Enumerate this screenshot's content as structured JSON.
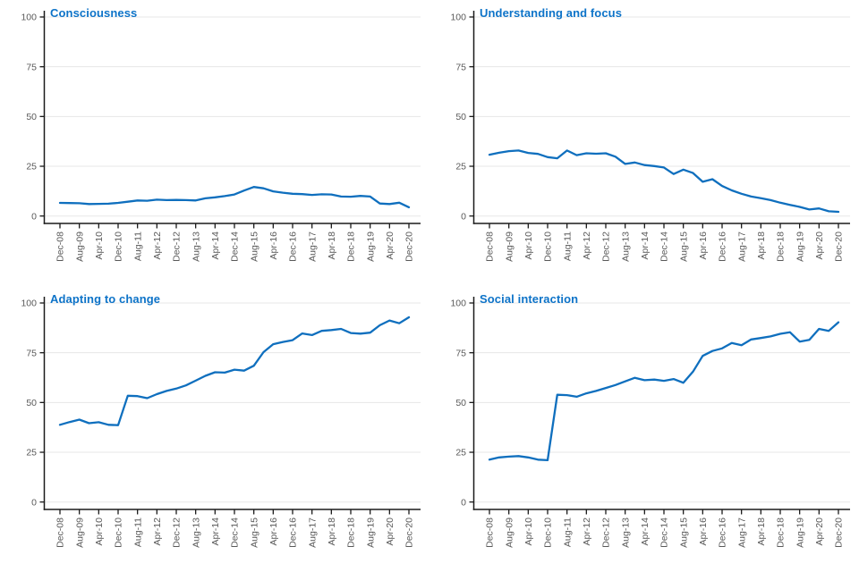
{
  "chart_data": {
    "type": "line",
    "title": "",
    "xlabel": "",
    "ylabel": "",
    "ylim": [
      0,
      100
    ],
    "y_ticks": [
      0,
      25,
      50,
      75,
      100
    ],
    "grid": "horizontal",
    "legend": "none",
    "line_color": "#0f6fbe",
    "title_color": "#0d73c8",
    "axis_color": "#1a1a1a",
    "gridline_color": "#e7e7e7",
    "tick_label_color": "#595959",
    "x": [
      "Dec-08",
      "Apr-09",
      "Aug-09",
      "Dec-09",
      "Apr-10",
      "Aug-10",
      "Dec-10",
      "Apr-11",
      "Aug-11",
      "Dec-11",
      "Apr-12",
      "Aug-12",
      "Dec-12",
      "Apr-13",
      "Aug-13",
      "Dec-13",
      "Apr-14",
      "Aug-14",
      "Dec-14",
      "Apr-15",
      "Aug-15",
      "Dec-15",
      "Apr-16",
      "Aug-16",
      "Dec-16",
      "Apr-17",
      "Aug-17",
      "Dec-17",
      "Apr-18",
      "Aug-18",
      "Dec-18",
      "Apr-19",
      "Aug-19",
      "Dec-19",
      "Apr-20",
      "Aug-20",
      "Dec-20"
    ],
    "x_tick_labels": [
      "Dec-08",
      "Aug-09",
      "Apr-10",
      "Dec-10",
      "Aug-11",
      "Apr-12",
      "Dec-12",
      "Aug-13",
      "Apr-14",
      "Dec-14",
      "Aug-15",
      "Apr-16",
      "Dec-16",
      "Aug-17",
      "Apr-18",
      "Dec-18",
      "Aug-19",
      "Apr-20",
      "Dec-20"
    ],
    "charts": [
      {
        "title": "Consciousness",
        "values": [
          6.6,
          6.5,
          6.4,
          6.0,
          6.1,
          6.2,
          6.6,
          7.2,
          7.8,
          7.7,
          8.2,
          8.0,
          8.1,
          8.0,
          7.8,
          8.9,
          9.4,
          10.0,
          10.8,
          12.8,
          14.6,
          13.9,
          12.4,
          11.7,
          11.2,
          11.0,
          10.6,
          10.9,
          10.8,
          9.8,
          9.7,
          10.1,
          9.8,
          6.3,
          6.0,
          6.7,
          4.4
        ]
      },
      {
        "title": "Understanding and focus",
        "values": [
          30.8,
          31.8,
          32.6,
          32.9,
          31.7,
          31.2,
          29.6,
          29.0,
          32.9,
          30.6,
          31.5,
          31.3,
          31.5,
          29.8,
          26.2,
          26.9,
          25.6,
          25.1,
          24.4,
          21.1,
          23.3,
          21.6,
          17.2,
          18.5,
          15.1,
          12.9,
          11.2,
          9.8,
          9.0,
          8.0,
          6.7,
          5.6,
          4.6,
          3.3,
          3.8,
          2.4,
          2.1
        ]
      },
      {
        "title": "Adapting to change",
        "values": [
          38.8,
          40.2,
          41.4,
          39.6,
          40.1,
          38.8,
          38.6,
          53.4,
          53.2,
          52.2,
          54.2,
          55.8,
          57.0,
          58.6,
          61.0,
          63.4,
          65.2,
          65.0,
          66.5,
          66.0,
          68.5,
          75.3,
          79.3,
          80.4,
          81.3,
          84.7,
          83.9,
          86.0,
          86.4,
          87.0,
          84.9,
          84.6,
          85.1,
          88.8,
          91.2,
          89.8,
          92.8
        ]
      },
      {
        "title": "Social interaction",
        "values": [
          21.3,
          22.4,
          22.8,
          23.1,
          22.4,
          21.3,
          21.0,
          53.9,
          53.7,
          52.9,
          54.6,
          55.8,
          57.3,
          58.8,
          60.6,
          62.4,
          61.2,
          61.5,
          60.9,
          61.8,
          59.9,
          65.5,
          73.4,
          75.9,
          77.2,
          79.9,
          78.8,
          81.7,
          82.4,
          83.2,
          84.5,
          85.3,
          80.6,
          81.5,
          87.0,
          86.0,
          90.3
        ]
      }
    ]
  }
}
